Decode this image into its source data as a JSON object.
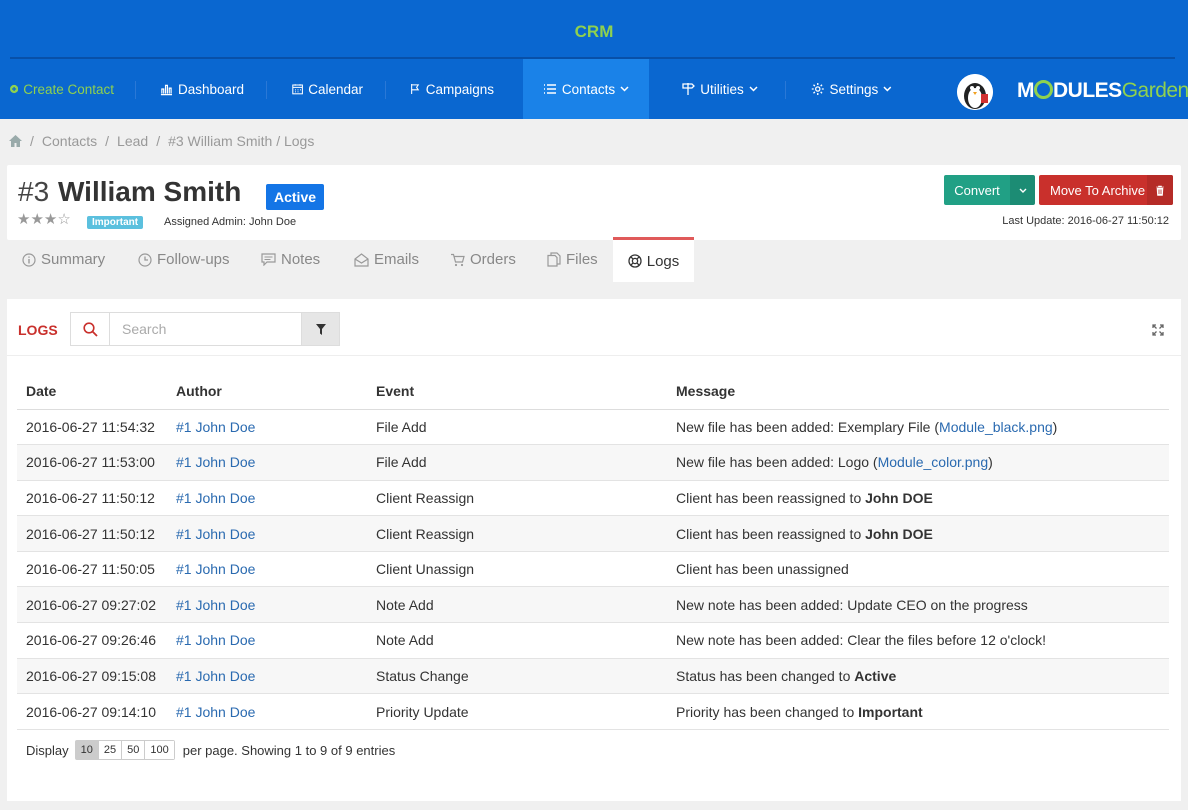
{
  "app": {
    "title": "CRM"
  },
  "nav": {
    "items": [
      {
        "label": "Create Contact"
      },
      {
        "label": "Dashboard"
      },
      {
        "label": "Calendar"
      },
      {
        "label": "Campaigns"
      },
      {
        "label": "Contacts"
      },
      {
        "label": "Utilities"
      },
      {
        "label": "Settings"
      }
    ],
    "active": "Contacts",
    "brand_left": "M",
    "brand_mid": "DULES",
    "brand_right": "Garden"
  },
  "breadcrumb": {
    "items": [
      "Contacts",
      "Lead",
      "#3 William Smith / Logs"
    ],
    "separator": "/"
  },
  "contact": {
    "number": "#3",
    "name": "William Smith",
    "status": "Active",
    "stars": "★★★☆",
    "priority": "Important",
    "assigned": "Assigned Admin: John Doe",
    "last_update": "Last Update: 2016-06-27 11:50:12"
  },
  "actions": {
    "convert": "Convert",
    "archive": "Move To Archive"
  },
  "tabs": [
    {
      "label": "Summary"
    },
    {
      "label": "Follow-ups"
    },
    {
      "label": "Notes"
    },
    {
      "label": "Emails"
    },
    {
      "label": "Orders"
    },
    {
      "label": "Files"
    },
    {
      "label": "Logs"
    }
  ],
  "logs": {
    "title": "LOGS",
    "search_placeholder": "Search",
    "columns": [
      "Date",
      "Author",
      "Event",
      "Message"
    ],
    "rows": [
      {
        "date": "2016-06-27 11:54:32",
        "author": "#1 John Doe",
        "event": "File Add",
        "msg": "New file has been added: Exemplary File (",
        "link": "Module_black.png",
        "after": ")",
        "bold": ""
      },
      {
        "date": "2016-06-27 11:53:00",
        "author": "#1 John Doe",
        "event": "File Add",
        "msg": "New file has been added: Logo (",
        "link": "Module_color.png",
        "after": ")",
        "bold": ""
      },
      {
        "date": "2016-06-27 11:50:12",
        "author": "#1 John Doe",
        "event": "Client Reassign",
        "msg": "Client has been reassigned to ",
        "link": "",
        "after": "",
        "bold": "John DOE"
      },
      {
        "date": "2016-06-27 11:50:12",
        "author": "#1 John Doe",
        "event": "Client Reassign",
        "msg": "Client has been reassigned to ",
        "link": "",
        "after": "",
        "bold": "John DOE"
      },
      {
        "date": "2016-06-27 11:50:05",
        "author": "#1 John Doe",
        "event": "Client Unassign",
        "msg": "Client has been unassigned",
        "link": "",
        "after": "",
        "bold": ""
      },
      {
        "date": "2016-06-27 09:27:02",
        "author": "#1 John Doe",
        "event": "Note Add",
        "msg": "New note has been added: Update CEO on the progress",
        "link": "",
        "after": "",
        "bold": ""
      },
      {
        "date": "2016-06-27 09:26:46",
        "author": "#1 John Doe",
        "event": "Note Add",
        "msg": "New note has been added: Clear the files before 12 o'clock!",
        "link": "",
        "after": "",
        "bold": ""
      },
      {
        "date": "2016-06-27 09:15:08",
        "author": "#1 John Doe",
        "event": "Status Change",
        "msg": "Status has been changed to ",
        "link": "",
        "after": "",
        "bold": "Active"
      },
      {
        "date": "2016-06-27 09:14:10",
        "author": "#1 John Doe",
        "event": "Priority Update",
        "msg": "Priority has been changed to ",
        "link": "",
        "after": "",
        "bold": "Important"
      }
    ],
    "footer_display": "Display",
    "page_sizes": [
      "10",
      "25",
      "50",
      "100"
    ],
    "selected_size": "10",
    "footer_text": "per page. Showing 1 to 9 of 9 entries"
  },
  "colors": {
    "topbar": "#0a67d0",
    "accent_green": "#8fd14f",
    "active_badge": "#1475e6",
    "convert": "#21a085",
    "archive": "#c9302c"
  }
}
